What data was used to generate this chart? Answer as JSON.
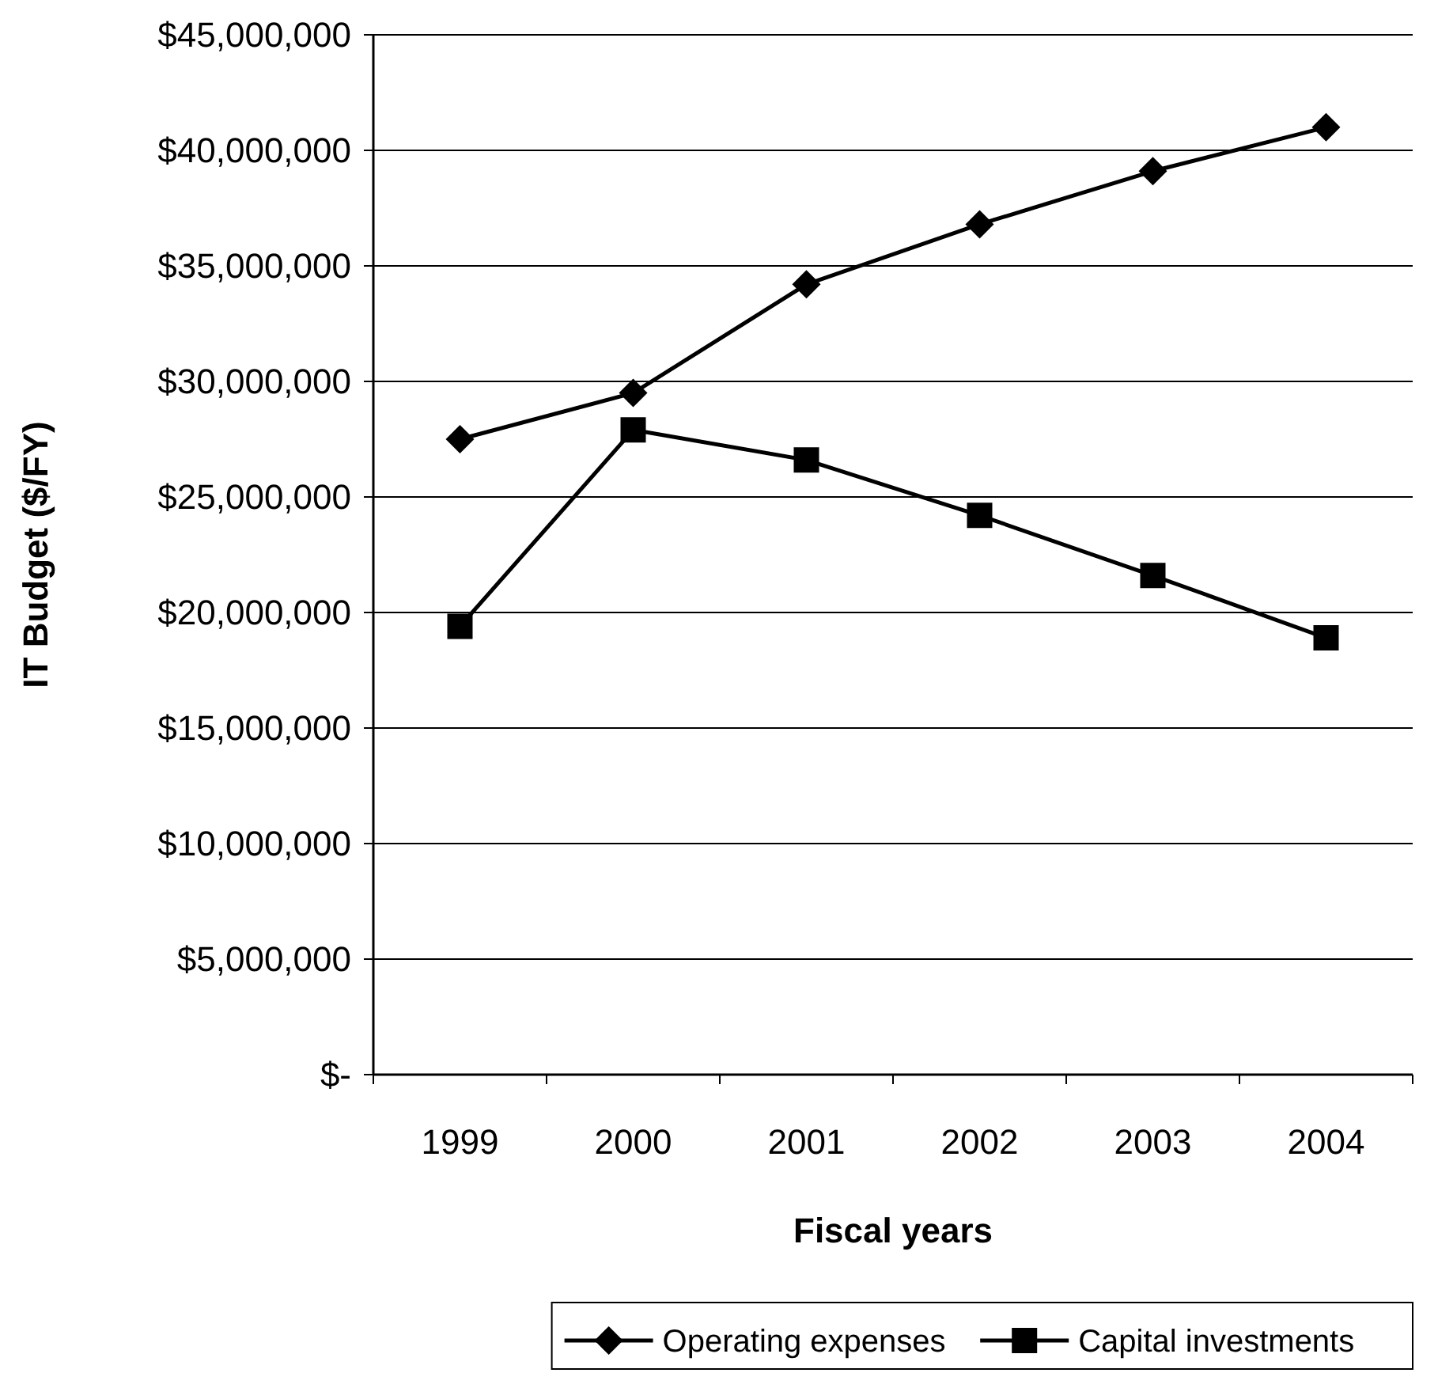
{
  "chart_data": {
    "type": "line",
    "xlabel": "Fiscal years",
    "ylabel": "IT Budget ($/FY)",
    "categories": [
      "1999",
      "2000",
      "2001",
      "2002",
      "2003",
      "2004"
    ],
    "series": [
      {
        "name": "Operating expenses",
        "color": "#000000",
        "marker": "diamond",
        "values": [
          27500000,
          29500000,
          34200000,
          36800000,
          39100000,
          41000000
        ]
      },
      {
        "name": "Capital investments",
        "color": "#000000",
        "marker": "square",
        "values": [
          19400000,
          27900000,
          26600000,
          24200000,
          21600000,
          18900000
        ]
      }
    ],
    "ylim": [
      0,
      45000000
    ],
    "yticks": [
      {
        "value": 0,
        "label": "$-"
      },
      {
        "value": 5000000,
        "label": "$5,000,000"
      },
      {
        "value": 10000000,
        "label": "$10,000,000"
      },
      {
        "value": 15000000,
        "label": "$15,000,000"
      },
      {
        "value": 20000000,
        "label": "$20,000,000"
      },
      {
        "value": 25000000,
        "label": "$25,000,000"
      },
      {
        "value": 30000000,
        "label": "$30,000,000"
      },
      {
        "value": 35000000,
        "label": "$35,000,000"
      },
      {
        "value": 40000000,
        "label": "$40,000,000"
      },
      {
        "value": 45000000,
        "label": "$45,000,000"
      }
    ],
    "grid": "y",
    "legend": "bottom",
    "line_style": "solid"
  }
}
